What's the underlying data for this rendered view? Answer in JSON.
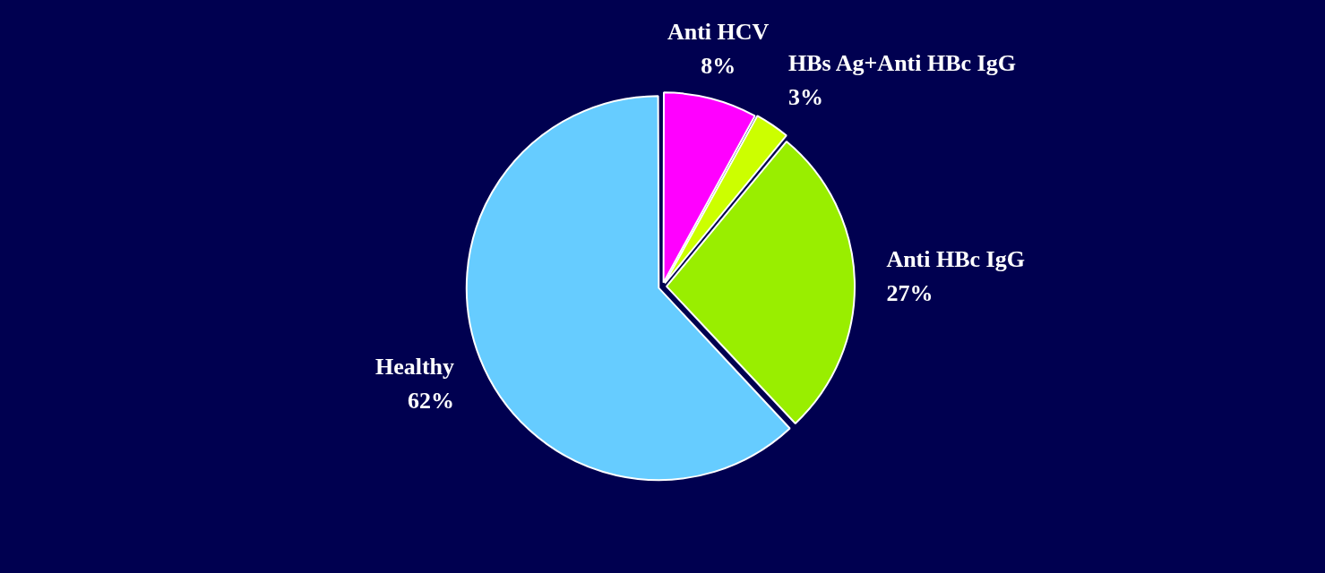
{
  "chart_data": {
    "type": "pie",
    "categories": [
      "Anti HCV",
      "HBs Ag+Anti HBc IgG",
      "Anti HBc IgG",
      "Healthy"
    ],
    "values": [
      8,
      3,
      27,
      62
    ],
    "colors": [
      "#ff00ff",
      "#ccff00",
      "#99ee00",
      "#66ccff"
    ],
    "value_labels": [
      "8%",
      "3%",
      "27%",
      "62%"
    ],
    "legend": false
  }
}
